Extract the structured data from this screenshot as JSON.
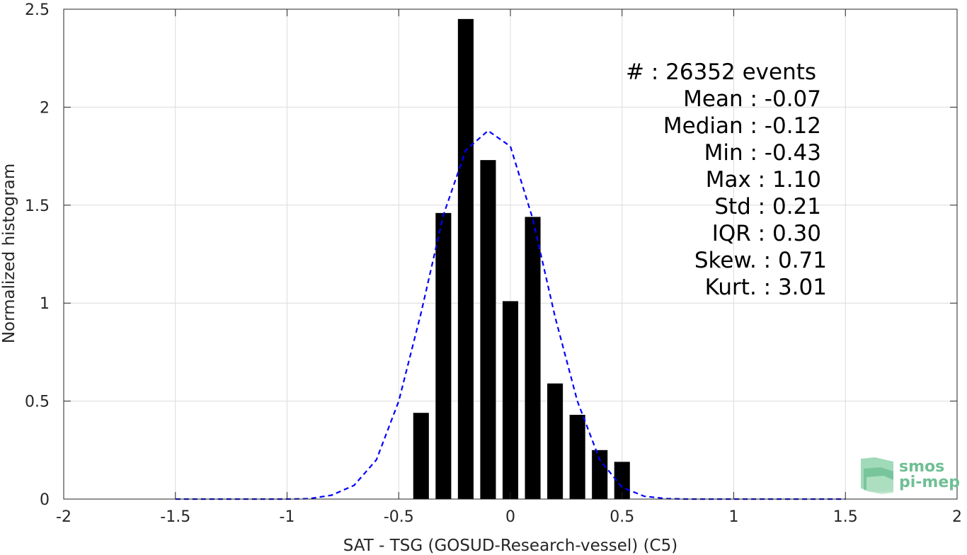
{
  "chart_data": {
    "type": "bar",
    "xlabel": "SAT - TSG (GOSUD-Research-vessel) (C5)",
    "ylabel": "Normalized histogram",
    "xlim": [
      -2,
      2
    ],
    "ylim": [
      0,
      2.5
    ],
    "grid": true,
    "x_ticks": [
      -2,
      -1.5,
      -1,
      -0.5,
      0,
      0.5,
      1,
      1.5,
      2
    ],
    "x_tick_labels": [
      "-2",
      "-1.5",
      "-1",
      "-0.5",
      "0",
      "0.5",
      "1",
      "1.5",
      "2"
    ],
    "y_ticks": [
      0,
      0.5,
      1,
      1.5,
      2,
      2.5
    ],
    "y_tick_labels": [
      "0",
      "0.5",
      "1",
      "1.5",
      "2",
      "2.5"
    ],
    "bar_width": 0.07,
    "bars": {
      "x": [
        -0.4,
        -0.3,
        -0.2,
        -0.1,
        0.0,
        0.1,
        0.2,
        0.3,
        0.4,
        0.5
      ],
      "values": [
        0.44,
        1.46,
        2.45,
        1.73,
        1.01,
        1.44,
        0.59,
        0.43,
        0.25,
        0.19
      ],
      "color": "#000000"
    },
    "fit_curve": {
      "style": "dashed",
      "color": "#0000ff",
      "x": [
        -1.5,
        -1.4,
        -1.3,
        -1.2,
        -1.1,
        -1.0,
        -0.9,
        -0.8,
        -0.7,
        -0.6,
        -0.5,
        -0.4,
        -0.3,
        -0.2,
        -0.1,
        0.0,
        0.1,
        0.2,
        0.3,
        0.4,
        0.5,
        0.6,
        0.7,
        0.8,
        0.9,
        1.0,
        1.1,
        1.2,
        1.3,
        1.4,
        1.5
      ],
      "y": [
        0,
        0,
        0,
        0,
        0,
        0,
        0.002,
        0.02,
        0.07,
        0.2,
        0.5,
        0.95,
        1.45,
        1.78,
        1.88,
        1.8,
        1.43,
        0.93,
        0.5,
        0.2,
        0.06,
        0.014,
        0.002,
        0,
        0,
        0,
        0,
        0,
        0,
        0,
        0
      ]
    },
    "stats_lines": [
      "#  : 26352 events",
      "Mean : -0.07",
      "Median : -0.12",
      "Min : -0.43",
      "Max : 1.10",
      "Std : 0.21",
      "IQR : 0.30",
      "Skew. : 0.71",
      "Kurt. : 3.01"
    ]
  },
  "logo": {
    "line1": "smos",
    "line2": "pi-mep",
    "color": "#6fbf94"
  }
}
